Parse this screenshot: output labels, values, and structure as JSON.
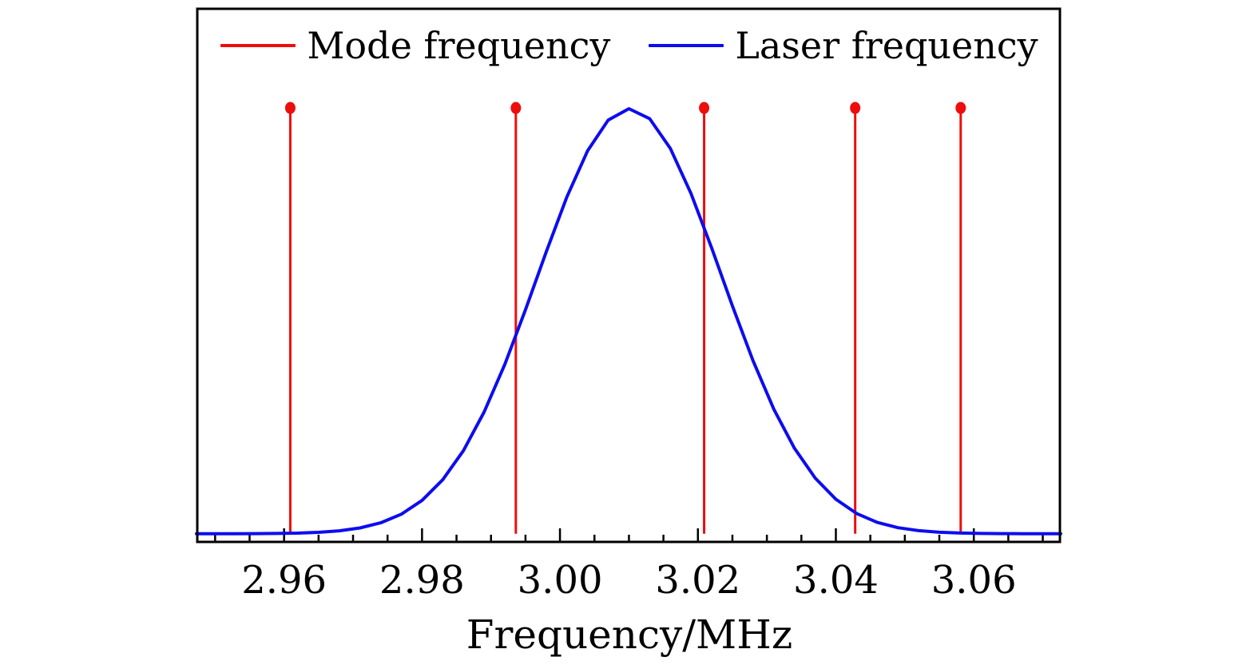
{
  "figure": {
    "background": "#ffffff",
    "frame_color": "#000000",
    "text_color": "#000000"
  },
  "legend": {
    "position": "upper center, horizontal, no frame",
    "items": [
      {
        "label": "Mode frequency",
        "color": "#ee0d0d",
        "swatch": "line"
      },
      {
        "label": "Laser frequency",
        "color": "#0d0dee",
        "swatch": "line"
      }
    ]
  },
  "chart_data": {
    "type": "line",
    "title": "",
    "xlabel": "Frequency/MHz",
    "ylabel": "",
    "xlim": [
      2.9473,
      3.0726
    ],
    "ylim": [
      -0.023,
      1.237
    ],
    "grid": false,
    "xticks": {
      "major": [
        2.96,
        2.98,
        3.0,
        3.02,
        3.04,
        3.06
      ],
      "labels": [
        "2.96",
        "2.98",
        "3.00",
        "3.02",
        "3.04",
        "3.06"
      ],
      "minor_step": 0.005
    },
    "yticks": {
      "major": [],
      "labels": []
    },
    "series": [
      {
        "name": "Mode frequency",
        "style": "stem",
        "color": "#ee0d0d",
        "marker": "filled-circle",
        "x": [
          2.9609,
          2.9936,
          3.0209,
          3.0428,
          3.0581
        ],
        "values": [
          1.0,
          1.0,
          1.0,
          1.0,
          1.0
        ]
      },
      {
        "name": "Laser frequency",
        "style": "line",
        "color": "#0d0dee",
        "shape": "gaussian",
        "gaussian": {
          "center_mhz": 3.0101,
          "sigma_mhz": 0.0133,
          "amplitude": 1.0,
          "fwhm_mhz": 0.0314
        },
        "x": [
          2.947,
          2.95,
          2.953,
          2.956,
          2.959,
          2.962,
          2.965,
          2.968,
          2.971,
          2.974,
          2.977,
          2.98,
          2.983,
          2.986,
          2.989,
          2.992,
          2.995,
          2.998,
          3.001,
          3.004,
          3.007,
          3.01,
          3.013,
          3.016,
          3.019,
          3.022,
          3.025,
          3.028,
          3.031,
          3.034,
          3.037,
          3.04,
          3.043,
          3.046,
          3.049,
          3.052,
          3.055,
          3.058,
          3.061,
          3.064,
          3.067,
          3.07,
          3.073
        ],
        "values": [
          0.0,
          0.0,
          0.0001,
          0.0003,
          0.0007,
          0.0015,
          0.0033,
          0.0069,
          0.0136,
          0.0257,
          0.046,
          0.0784,
          0.1271,
          0.1956,
          0.2863,
          0.3985,
          0.527,
          0.6628,
          0.7925,
          0.9008,
          0.9734,
          1.0,
          0.9767,
          0.9068,
          0.8005,
          0.6718,
          0.536,
          0.4065,
          0.2931,
          0.201,
          0.131,
          0.0812,
          0.0478,
          0.0267,
          0.0143,
          0.0072,
          0.0035,
          0.0016,
          0.0007,
          0.0003,
          0.0001,
          0.0,
          0.0
        ]
      }
    ]
  }
}
